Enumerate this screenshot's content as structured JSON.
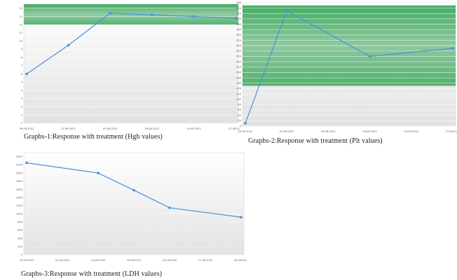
{
  "chart_data": [
    {
      "type": "line",
      "caption": "Graphs-1:Response with treatment (Hgb values)",
      "categories": [
        "09.06.2022",
        "02.06.2022",
        "09.06.2022",
        "09.06.2022",
        "13.06.2022",
        "27.06.2022"
      ],
      "yticks": [
        "0",
        "1",
        "2",
        "3",
        "4",
        "5",
        "6",
        "7",
        "8",
        "9",
        "10",
        "11",
        "12",
        "13",
        "14"
      ],
      "ylim": [
        0,
        14.5
      ],
      "values": [
        6.0,
        9.5,
        13.4,
        13.2,
        13.0,
        12.8
      ],
      "normal_band": [
        12,
        14.5
      ],
      "line_color": "#4a90d9",
      "band_color": "#3aa65a",
      "grid": true
    },
    {
      "type": "line",
      "caption": "Graphs-2:Response with treatment (Plt values)",
      "categories": [
        "03.06.2022",
        "03.06.2022",
        "08.06.2022",
        "09.06.2022",
        "13.06.2022",
        "27.06.2022"
      ],
      "yticks": [
        "0",
        "20",
        "40",
        "60",
        "80",
        "100",
        "120",
        "140",
        "160",
        "180",
        "200",
        "220",
        "240",
        "260",
        "280",
        "300",
        "320",
        "340",
        "360",
        "380",
        "400",
        "420",
        "440",
        "460"
      ],
      "ylim": [
        0,
        460
      ],
      "values": [
        10,
        430,
        null,
        260,
        null,
        290
      ],
      "normal_band": [
        150,
        450
      ],
      "line_color": "#4a90d9",
      "band_color": "#3aa65a",
      "grid": true
    },
    {
      "type": "line",
      "caption": "Graphs-3:Response with treatment (LDH values)",
      "categories": [
        "22.06.2022",
        "10.06.2022",
        "14.06.2022",
        "19.06.2022",
        "23.06.2022",
        "27.06.2022",
        "30.06.2022"
      ],
      "yticks": [
        "0",
        "200",
        "400",
        "600",
        "800",
        "1000",
        "1200",
        "1400",
        "1600",
        "1800",
        "2000",
        "2200",
        "2400"
      ],
      "ylim": [
        0,
        2500
      ],
      "values": [
        2250,
        null,
        2000,
        1580,
        1150,
        null,
        920
      ],
      "line_color": "#4a90d9",
      "grid": true
    }
  ]
}
